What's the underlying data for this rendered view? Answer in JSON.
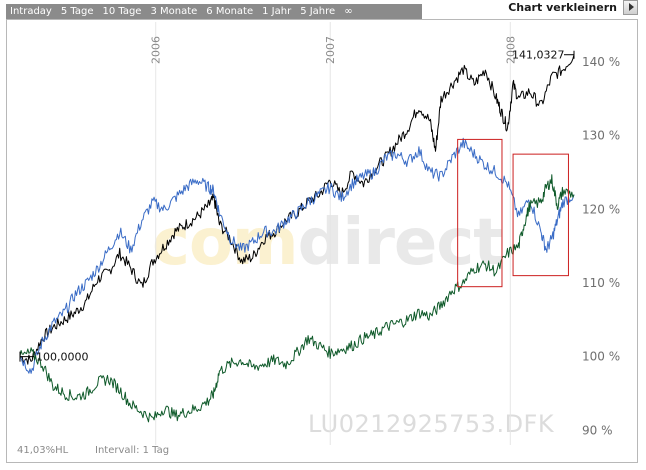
{
  "toolbar": {
    "tabs": [
      "Intraday",
      "5 Tage",
      "10 Tage",
      "3 Monate",
      "6 Monate",
      "1 Jahr",
      "5 Jahre",
      "∞"
    ],
    "shrink_label": "Chart verkleinern"
  },
  "watermark": {
    "logo_part1": "com",
    "logo_part2": "direct",
    "isin": "LU0212925753.DFK"
  },
  "footer": {
    "change": "41,03%HL",
    "interval": "Intervall: 1 Tag"
  },
  "colors": {
    "black_series": "#000000",
    "blue_series": "#3a6cc6",
    "green_series": "#0f5a2a",
    "highlight_box": "#cc1f1f",
    "grid": "#e6e6e6"
  },
  "chart_data": {
    "type": "line",
    "x_ticks": [
      "2006",
      "2007",
      "2008"
    ],
    "y_ticks": [
      "90 %",
      "100 %",
      "110 %",
      "120 %",
      "130 %",
      "140 %"
    ],
    "ylim": [
      88,
      143
    ],
    "start_label": "100,0000",
    "end_label": "141,0327",
    "series": [
      {
        "color": "#000000",
        "points": [
          [
            0,
            100
          ],
          [
            0.02,
            99.5
          ],
          [
            0.04,
            102.5
          ],
          [
            0.06,
            104
          ],
          [
            0.08,
            105
          ],
          [
            0.1,
            106
          ],
          [
            0.12,
            107.5
          ],
          [
            0.14,
            110.5
          ],
          [
            0.16,
            111.5
          ],
          [
            0.18,
            114
          ],
          [
            0.2,
            112
          ],
          [
            0.22,
            109.5
          ],
          [
            0.24,
            113
          ],
          [
            0.26,
            115
          ],
          [
            0.28,
            117
          ],
          [
            0.3,
            118
          ],
          [
            0.32,
            119
          ],
          [
            0.34,
            120.5
          ],
          [
            0.35,
            121.5
          ],
          [
            0.36,
            118
          ],
          [
            0.38,
            116
          ],
          [
            0.4,
            113
          ],
          [
            0.42,
            113.5
          ],
          [
            0.44,
            116
          ],
          [
            0.46,
            117
          ],
          [
            0.48,
            118.5
          ],
          [
            0.5,
            119.5
          ],
          [
            0.52,
            121
          ],
          [
            0.54,
            122
          ],
          [
            0.56,
            124
          ],
          [
            0.58,
            122
          ],
          [
            0.6,
            125
          ],
          [
            0.62,
            123.5
          ],
          [
            0.64,
            125.5
          ],
          [
            0.66,
            127
          ],
          [
            0.68,
            129
          ],
          [
            0.7,
            131
          ],
          [
            0.72,
            134
          ],
          [
            0.74,
            132
          ],
          [
            0.75,
            128
          ],
          [
            0.76,
            135
          ],
          [
            0.78,
            137
          ],
          [
            0.8,
            139
          ],
          [
            0.82,
            137
          ],
          [
            0.84,
            139
          ],
          [
            0.86,
            135
          ],
          [
            0.87,
            133
          ],
          [
            0.88,
            131
          ],
          [
            0.89,
            137
          ],
          [
            0.9,
            135
          ],
          [
            0.92,
            136
          ],
          [
            0.94,
            134
          ],
          [
            0.96,
            138
          ],
          [
            0.98,
            139
          ],
          [
            1.0,
            141
          ]
        ]
      },
      {
        "color": "#3a6cc6",
        "points": [
          [
            0,
            100
          ],
          [
            0.02,
            98
          ],
          [
            0.04,
            102
          ],
          [
            0.06,
            104.5
          ],
          [
            0.08,
            106
          ],
          [
            0.1,
            108.5
          ],
          [
            0.12,
            110
          ],
          [
            0.14,
            112
          ],
          [
            0.16,
            114.5
          ],
          [
            0.18,
            117
          ],
          [
            0.2,
            114.5
          ],
          [
            0.22,
            118.5
          ],
          [
            0.24,
            121
          ],
          [
            0.26,
            120
          ],
          [
            0.28,
            121.5
          ],
          [
            0.3,
            123
          ],
          [
            0.32,
            124
          ],
          [
            0.34,
            123
          ],
          [
            0.35,
            122.5
          ],
          [
            0.36,
            119.5
          ],
          [
            0.38,
            116
          ],
          [
            0.4,
            114.5
          ],
          [
            0.42,
            115.5
          ],
          [
            0.44,
            117
          ],
          [
            0.46,
            117
          ],
          [
            0.48,
            118.5
          ],
          [
            0.5,
            119.5
          ],
          [
            0.52,
            121
          ],
          [
            0.54,
            122
          ],
          [
            0.56,
            123
          ],
          [
            0.58,
            121.5
          ],
          [
            0.6,
            123.5
          ],
          [
            0.62,
            124.5
          ],
          [
            0.64,
            125
          ],
          [
            0.66,
            127
          ],
          [
            0.68,
            127.5
          ],
          [
            0.7,
            126.5
          ],
          [
            0.72,
            128
          ],
          [
            0.74,
            125
          ],
          [
            0.76,
            124.5
          ],
          [
            0.78,
            127
          ],
          [
            0.8,
            129
          ],
          [
            0.82,
            127.5
          ],
          [
            0.84,
            126
          ],
          [
            0.86,
            125
          ],
          [
            0.88,
            123.5
          ],
          [
            0.9,
            119
          ],
          [
            0.92,
            121.5
          ],
          [
            0.94,
            117
          ],
          [
            0.95,
            114.5
          ],
          [
            0.96,
            116
          ],
          [
            0.97,
            118.5
          ],
          [
            0.98,
            121
          ],
          [
            1.0,
            122
          ]
        ]
      },
      {
        "color": "#0f5a2a",
        "points": [
          [
            0,
            100
          ],
          [
            0.02,
            100.5
          ],
          [
            0.04,
            99
          ],
          [
            0.06,
            96
          ],
          [
            0.08,
            95
          ],
          [
            0.1,
            94.5
          ],
          [
            0.12,
            95
          ],
          [
            0.14,
            96.5
          ],
          [
            0.16,
            97
          ],
          [
            0.18,
            95.5
          ],
          [
            0.2,
            93.5
          ],
          [
            0.22,
            92.5
          ],
          [
            0.24,
            91.5
          ],
          [
            0.26,
            93
          ],
          [
            0.28,
            92
          ],
          [
            0.3,
            92.5
          ],
          [
            0.32,
            93
          ],
          [
            0.34,
            94
          ],
          [
            0.35,
            95
          ],
          [
            0.36,
            98
          ],
          [
            0.38,
            99
          ],
          [
            0.4,
            99.5
          ],
          [
            0.42,
            98.5
          ],
          [
            0.44,
            99
          ],
          [
            0.46,
            99.5
          ],
          [
            0.48,
            99
          ],
          [
            0.5,
            100.5
          ],
          [
            0.52,
            102.5
          ],
          [
            0.54,
            101.5
          ],
          [
            0.56,
            100.5
          ],
          [
            0.58,
            101
          ],
          [
            0.6,
            101.5
          ],
          [
            0.62,
            102.5
          ],
          [
            0.64,
            103
          ],
          [
            0.66,
            104
          ],
          [
            0.68,
            104.5
          ],
          [
            0.7,
            105
          ],
          [
            0.72,
            106
          ],
          [
            0.74,
            105.5
          ],
          [
            0.76,
            107
          ],
          [
            0.78,
            109
          ],
          [
            0.8,
            110
          ],
          [
            0.82,
            112
          ],
          [
            0.84,
            112.5
          ],
          [
            0.86,
            111.5
          ],
          [
            0.88,
            114
          ],
          [
            0.9,
            115
          ],
          [
            0.91,
            118
          ],
          [
            0.92,
            120.5
          ],
          [
            0.94,
            121
          ],
          [
            0.95,
            123
          ],
          [
            0.96,
            124
          ],
          [
            0.97,
            120.5
          ],
          [
            0.98,
            122.5
          ],
          [
            1.0,
            122
          ]
        ]
      }
    ],
    "highlight_boxes": [
      {
        "x_from": 0.79,
        "x_to": 0.87,
        "y_from": 109.5,
        "y_to": 129.5
      },
      {
        "x_from": 0.89,
        "x_to": 0.99,
        "y_from": 111,
        "y_to": 127.5
      }
    ]
  }
}
